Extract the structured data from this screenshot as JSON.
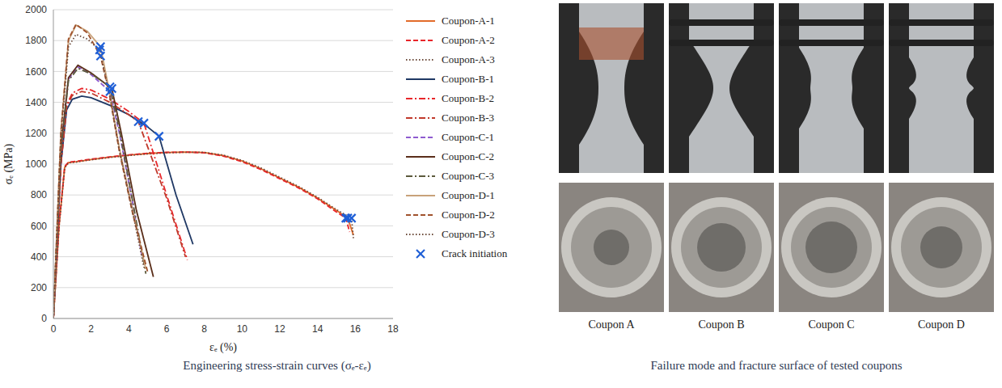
{
  "chart_data": {
    "type": "line",
    "title": "Engineering stress-strain curves (σₑ-εₑ)",
    "x_label": "εₑ (%)",
    "y_label": "σₑ (MPa)",
    "xlim": [
      0,
      18
    ],
    "xticks": [
      0,
      2,
      4,
      6,
      8,
      10,
      12,
      14,
      16,
      18
    ],
    "ylim": [
      0,
      2000
    ],
    "yticks": [
      0,
      200,
      400,
      600,
      800,
      1000,
      1200,
      1400,
      1600,
      1800,
      2000
    ],
    "grid": true,
    "legend": "right",
    "series": [
      {
        "name": "Coupon-A-1",
        "color": "#e26b2a",
        "line_style": "solid",
        "x": [
          0,
          0.3,
          0.6,
          0.8,
          1.2,
          2,
          3,
          4,
          5,
          6,
          7,
          8,
          9,
          10,
          11,
          12,
          13,
          14,
          15,
          15.6,
          15.9
        ],
        "values": [
          0,
          600,
          980,
          1010,
          1015,
          1030,
          1045,
          1058,
          1068,
          1075,
          1078,
          1075,
          1055,
          1020,
          970,
          910,
          850,
          780,
          700,
          650,
          540
        ]
      },
      {
        "name": "Coupon-A-2",
        "color": "#e8262a",
        "line_style": "dashed",
        "x": [
          0,
          0.3,
          0.6,
          0.8,
          1.2,
          2,
          3,
          4,
          5,
          6,
          7,
          8,
          9,
          10,
          11,
          12,
          13,
          14,
          15,
          15.5,
          15.7
        ],
        "values": [
          0,
          610,
          985,
          1012,
          1018,
          1032,
          1047,
          1060,
          1070,
          1076,
          1078,
          1073,
          1052,
          1015,
          965,
          905,
          845,
          775,
          690,
          650,
          560
        ]
      },
      {
        "name": "Coupon-A-3",
        "color": "#6b4a3a",
        "line_style": "dotted",
        "x": [
          0,
          0.3,
          0.6,
          0.8,
          1.2,
          2,
          3,
          4,
          5,
          6,
          7,
          8,
          9,
          10,
          11,
          12,
          13,
          14,
          15,
          15.8,
          15.9
        ],
        "values": [
          0,
          590,
          975,
          1008,
          1013,
          1028,
          1043,
          1056,
          1066,
          1073,
          1077,
          1076,
          1058,
          1024,
          975,
          915,
          855,
          785,
          705,
          650,
          520
        ]
      },
      {
        "name": "Coupon-B-1",
        "color": "#1f3864",
        "line_style": "solid",
        "x": [
          0,
          0.4,
          0.7,
          1,
          1.5,
          2,
          3,
          4,
          5,
          5.6,
          6.5,
          7.4
        ],
        "values": [
          0,
          1000,
          1350,
          1420,
          1440,
          1430,
          1380,
          1320,
          1240,
          1180,
          800,
          480
        ]
      },
      {
        "name": "Coupon-B-2",
        "color": "#e8262a",
        "line_style": "dashdot",
        "x": [
          0,
          0.4,
          0.7,
          1,
          1.5,
          2,
          3,
          4,
          4.8,
          6,
          7.1
        ],
        "values": [
          0,
          1000,
          1380,
          1460,
          1490,
          1480,
          1420,
          1340,
          1265,
          800,
          380
        ]
      },
      {
        "name": "Coupon-B-3",
        "color": "#c0392b",
        "line_style": "dashdot",
        "x": [
          0,
          0.4,
          0.7,
          1,
          1.5,
          2,
          3,
          4,
          4.5,
          6,
          7
        ],
        "values": [
          0,
          1000,
          1370,
          1445,
          1470,
          1460,
          1400,
          1320,
          1275,
          780,
          400
        ]
      },
      {
        "name": "Coupon-C-1",
        "color": "#8e5bd0",
        "line_style": "dashed",
        "x": [
          0,
          0.4,
          0.8,
          1.3,
          2,
          3,
          3.5,
          4.2,
          4.7
        ],
        "values": [
          0,
          1100,
          1550,
          1630,
          1580,
          1470,
          1200,
          750,
          400
        ]
      },
      {
        "name": "Coupon-C-2",
        "color": "#5a2e1a",
        "line_style": "solid",
        "x": [
          0,
          0.4,
          0.8,
          1.3,
          2,
          3.1,
          3.6,
          4.4,
          5.3
        ],
        "values": [
          0,
          1100,
          1560,
          1640,
          1590,
          1490,
          1200,
          700,
          270
        ]
      },
      {
        "name": "Coupon-C-3",
        "color": "#5c5a3c",
        "line_style": "dashdot",
        "x": [
          0,
          0.4,
          0.8,
          1.3,
          2,
          3,
          3.5,
          4.2,
          4.9
        ],
        "values": [
          0,
          1090,
          1540,
          1620,
          1585,
          1500,
          1220,
          760,
          290
        ]
      },
      {
        "name": "Coupon-D-1",
        "color": "#c8a27a",
        "line_style": "solid",
        "x": [
          0,
          0.4,
          0.8,
          1.2,
          1.8,
          2.5,
          3,
          3.5,
          4.2,
          4.9
        ],
        "values": [
          0,
          1200,
          1800,
          1900,
          1860,
          1760,
          1450,
          1100,
          700,
          320
        ]
      },
      {
        "name": "Coupon-D-2",
        "color": "#a0522d",
        "line_style": "dashed",
        "x": [
          0,
          0.4,
          0.8,
          1.2,
          1.8,
          2.5,
          3,
          3.5,
          4.2,
          5
        ],
        "values": [
          0,
          1210,
          1810,
          1905,
          1850,
          1700,
          1430,
          1080,
          680,
          300
        ]
      },
      {
        "name": "Coupon-D-3",
        "color": "#6b4a3a",
        "line_style": "dotted",
        "x": [
          0,
          0.4,
          0.8,
          1.2,
          1.8,
          2.45,
          3,
          3.5,
          4.2,
          4.8
        ],
        "values": [
          0,
          1180,
          1760,
          1840,
          1810,
          1740,
          1440,
          1090,
          690,
          330
        ]
      },
      {
        "name": "Crack initiation",
        "type": "scatter",
        "marker": "x",
        "color": "#1f5fd6",
        "x": [
          2.5,
          2.5,
          2.45,
          3,
          3.1,
          3,
          5.6,
          4.8,
          4.5,
          15.6,
          15.5,
          15.8
        ],
        "values": [
          1760,
          1700,
          1740,
          1470,
          1490,
          1500,
          1180,
          1265,
          1275,
          650,
          650,
          650
        ]
      }
    ]
  },
  "photos": {
    "caption": "Failure mode and fracture surface of tested coupons",
    "labels": [
      "Coupon A",
      "Coupon B",
      "Coupon C",
      "Coupon D"
    ]
  }
}
